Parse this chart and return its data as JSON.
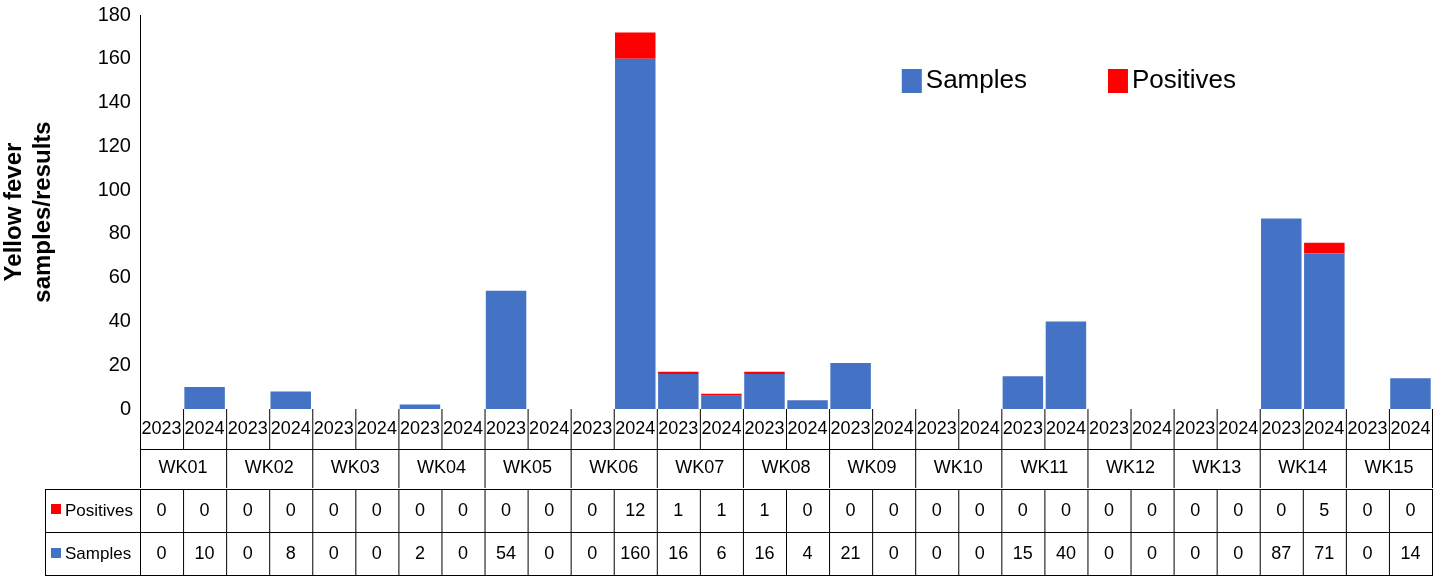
{
  "chart_data": {
    "type": "bar",
    "stacked": true,
    "ylabel": "Yellow fever samples/results",
    "categories": [
      "2023",
      "2024",
      "2023",
      "2024",
      "2023",
      "2024",
      "2023",
      "2024",
      "2023",
      "2024",
      "2023",
      "2024",
      "2023",
      "2024",
      "2023",
      "2024",
      "2023",
      "2024",
      "2023",
      "2024",
      "2023",
      "2024",
      "2023",
      "2024",
      "2023",
      "2024",
      "2023",
      "2024",
      "2023",
      "2024"
    ],
    "annotations": [
      "WK01",
      "WK02",
      "WK03",
      "WK04",
      "WK05",
      "WK06",
      "WK07",
      "WK08",
      "WK09",
      "WK10",
      "WK11",
      "WK12",
      "WK13",
      "WK14",
      "WK15"
    ],
    "series": [
      {
        "name": "Samples",
        "color": "#4472c4",
        "values": [
          0,
          10,
          0,
          8,
          0,
          0,
          2,
          0,
          54,
          0,
          0,
          160,
          16,
          6,
          16,
          4,
          21,
          0,
          0,
          0,
          15,
          40,
          0,
          0,
          0,
          0,
          87,
          71,
          0,
          14
        ]
      },
      {
        "name": "Positives",
        "color": "#ff0000",
        "values": [
          0,
          0,
          0,
          0,
          0,
          0,
          0,
          0,
          0,
          0,
          0,
          12,
          1,
          1,
          1,
          0,
          0,
          0,
          0,
          0,
          0,
          0,
          0,
          0,
          0,
          0,
          0,
          5,
          0,
          0
        ]
      }
    ],
    "ylim": [
      0,
      180
    ],
    "yticks": [
      0,
      20,
      40,
      60,
      80,
      100,
      120,
      140,
      160,
      180
    ],
    "grid": false,
    "legend": "top right",
    "data_labels": true
  }
}
